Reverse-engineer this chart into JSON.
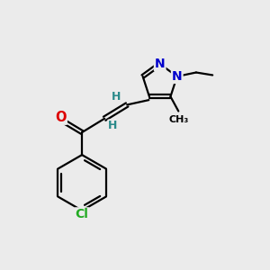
{
  "background_color": "#ebebeb",
  "bond_color": "#000000",
  "O_color": "#dd0000",
  "N_color": "#0000cc",
  "Cl_color": "#22aa22",
  "H_color": "#2a8a8a",
  "line_width": 1.6,
  "figsize": [
    3.0,
    3.0
  ],
  "dpi": 100,
  "xlim": [
    0,
    10
  ],
  "ylim": [
    0,
    10
  ]
}
